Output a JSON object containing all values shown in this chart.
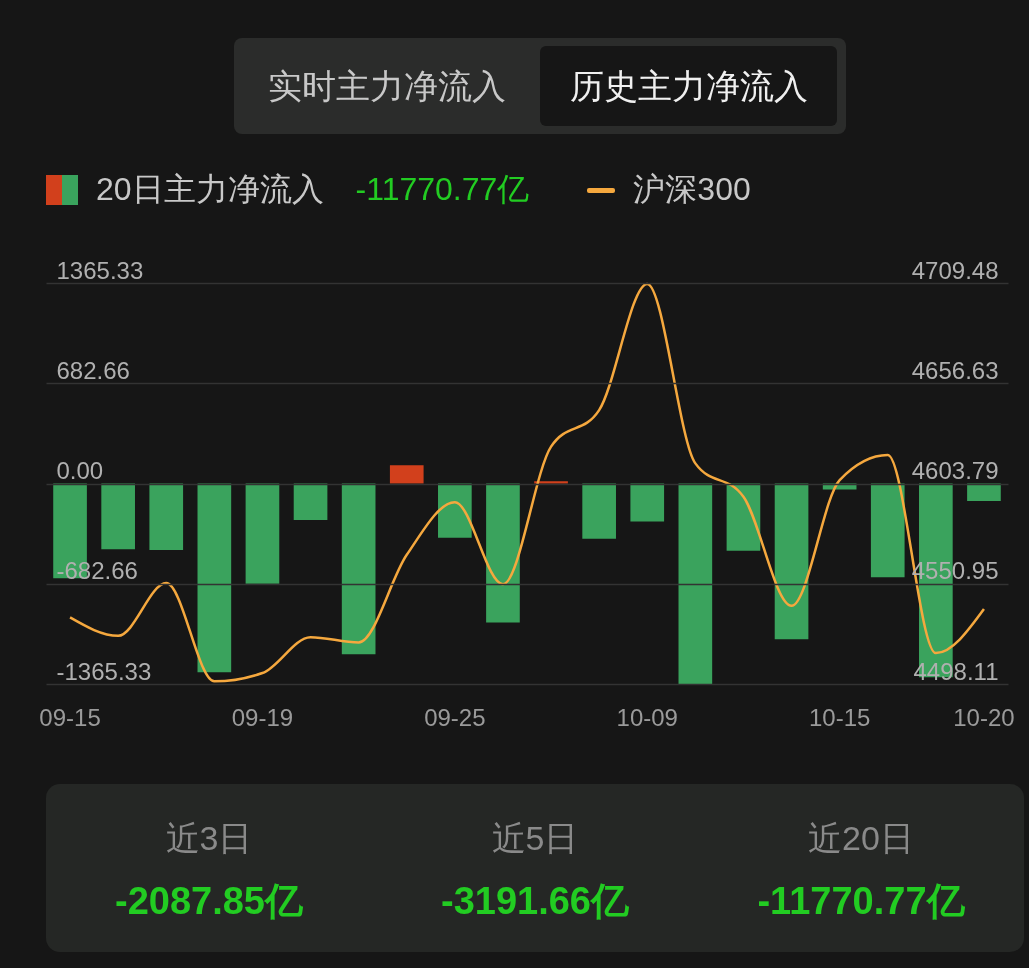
{
  "chart_data": {
    "type": "bar",
    "categories": [
      "09-15",
      null,
      null,
      null,
      "09-19",
      null,
      null,
      null,
      "09-25",
      null,
      null,
      null,
      "10-09",
      null,
      null,
      null,
      "10-15",
      null,
      null,
      "10-20"
    ],
    "series": [
      {
        "name": "20日主力净流入",
        "colors": [
          "#3aa35d",
          "#3aa35d",
          "#3aa35d",
          "#3aa35d",
          "#3aa35d",
          "#3aa35d",
          "#3aa35d",
          "#d2401c",
          "#3aa35d",
          "#3aa35d",
          "#d2401c",
          "#3aa35d",
          "#3aa35d",
          "#3aa35d",
          "#3aa35d",
          "#3aa35d",
          "#3aa35d",
          "#3aa35d",
          "#3aa35d",
          "#3aa35d"
        ],
        "values": [
          -646,
          -447,
          -452,
          -1285,
          -683,
          -249,
          -1163,
          124,
          -369,
          -947,
          15,
          -376,
          -258,
          -1365,
          -458,
          -1061,
          -41,
          -639,
          -1319,
          -120
        ]
      },
      {
        "name": "沪深300",
        "type": "line",
        "axis": "y2",
        "color": "#f5a83e",
        "values": [
          4533.2,
          4523.5,
          4551.3,
          4499.5,
          4503.9,
          4522.8,
          4520,
          4566.2,
          4593.9,
          4550.7,
          4623.2,
          4642.5,
          4709,
          4614.4,
          4596.8,
          4539.3,
          4605.6,
          4618.8,
          4514.4,
          4537.6
        ]
      }
    ],
    "ylim": [
      -1365.33,
      1365.33
    ],
    "yticks": [
      -1365.33,
      -682.66,
      {
        "value": 0,
        "label": "0.00"
      },
      682.66,
      1365.33
    ],
    "y2lim": [
      4498.11,
      4709.48
    ],
    "y2ticks": [
      4498.11,
      4550.95,
      4603.79,
      4656.63,
      4709.48
    ],
    "grid": "y",
    "legend": "top left",
    "annotations": [
      "实时主力净流入",
      "历史主力净流入",
      "-11770.77亿",
      "近3日",
      "-2087.85亿",
      "近5日",
      "-3191.66亿",
      "近20日",
      "-11770.77亿"
    ]
  }
}
